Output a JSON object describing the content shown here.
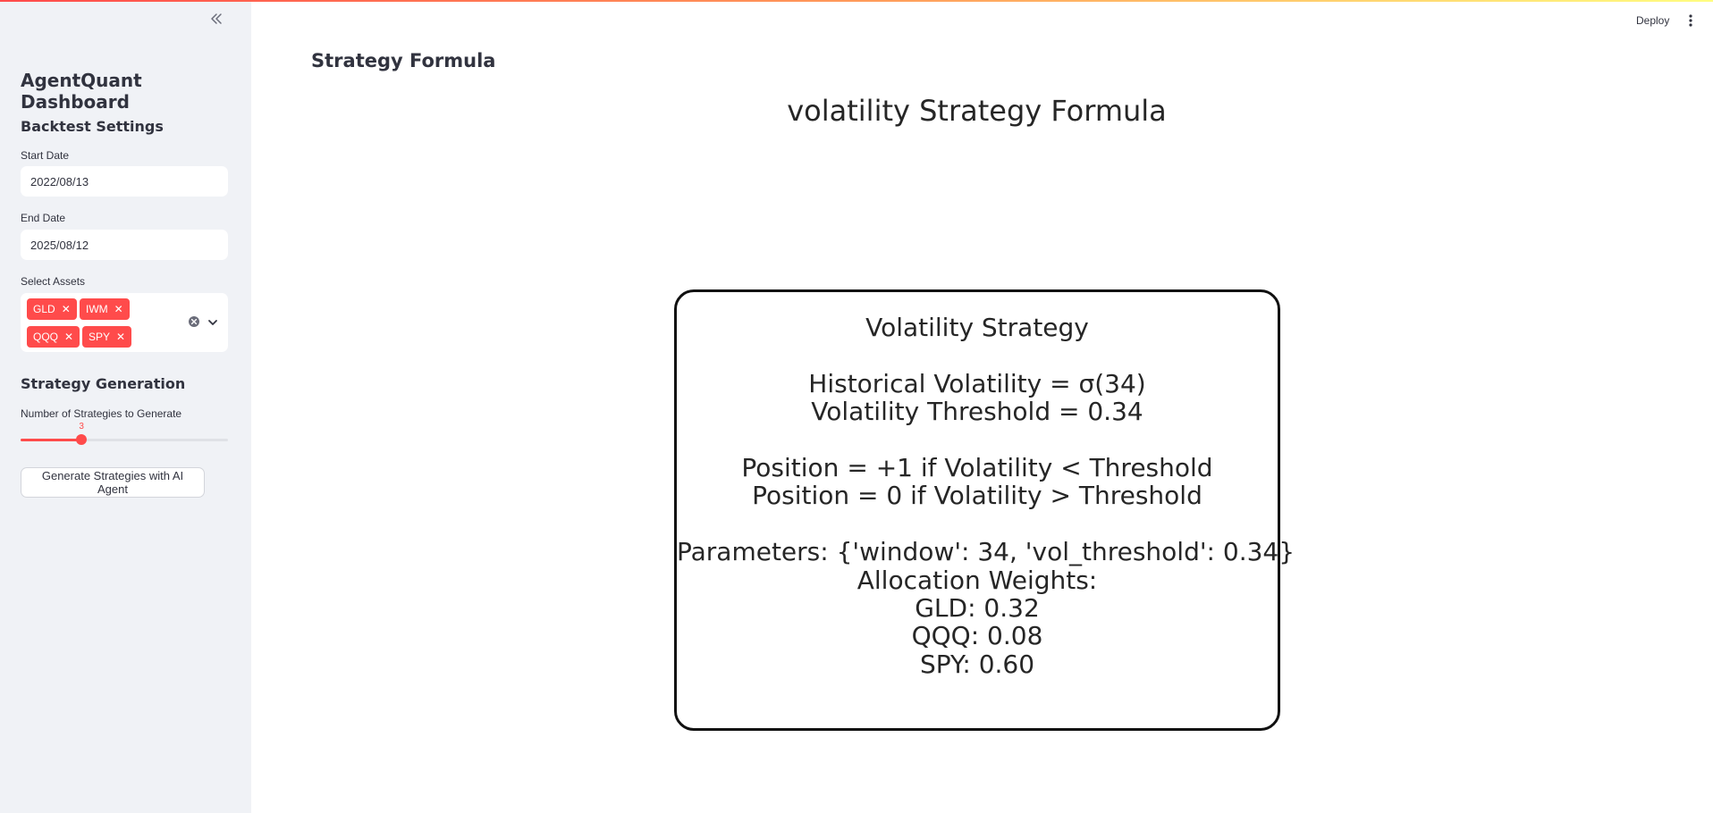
{
  "sidebar": {
    "collapse_icon": "double-chevron-left-icon",
    "app_title": "AgentQuant Dashboard",
    "backtest": {
      "heading": "Backtest Settings",
      "start_date_label": "Start Date",
      "start_date_value": "2022/08/13",
      "end_date_label": "End Date",
      "end_date_value": "2025/08/12",
      "assets_label": "Select Assets",
      "assets": [
        "GLD",
        "IWM",
        "QQQ",
        "SPY"
      ]
    },
    "generation": {
      "heading": "Strategy Generation",
      "num_label": "Number of Strategies to Generate",
      "num_value": "3",
      "slider_fraction": 0.2,
      "button_label": "Generate Strategies with AI Agent"
    }
  },
  "header": {
    "deploy_label": "Deploy",
    "menu_icon": "vertical-dots-icon"
  },
  "main": {
    "heading": "Strategy Formula",
    "figure": {
      "title": "volatility Strategy Formula",
      "lines": [
        "Volatility Strategy",
        "",
        "Historical Volatility = σ(34)",
        "Volatility Threshold = 0.34",
        "",
        "Position = +1 if Volatility < Threshold",
        "Position = 0 if Volatility > Threshold",
        "",
        "Parameters: {'window': 34, 'vol_threshold': 0.34}",
        "Allocation Weights:",
        "GLD: 0.32",
        "QQQ: 0.08",
        "SPY: 0.60"
      ]
    }
  },
  "colors": {
    "accent": "#ff4b4b",
    "sidebar_bg": "#f0f2f6",
    "text": "#31333f"
  }
}
